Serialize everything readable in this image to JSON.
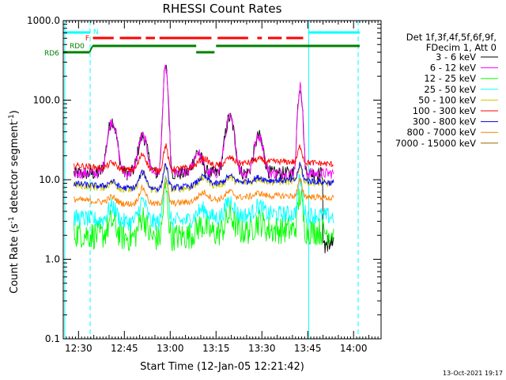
{
  "chart_data": {
    "type": "line",
    "title": "RHESSI Count Rates",
    "xlabel": "Start Time (12-Jan-05 12:21:42)",
    "ylabel_main": "Count Rate (s",
    "ylabel_sup": "-1",
    "ylabel_tail": " detector segment",
    "ylabel_end": ")",
    "y_scale": "log",
    "ylim": [
      0.1,
      1000
    ],
    "xlim_minutes": [
      -5,
      99
    ],
    "x_ticks": [
      {
        "label": "12:30",
        "min": 0
      },
      {
        "label": "12:45",
        "min": 15
      },
      {
        "label": "13:00",
        "min": 30
      },
      {
        "label": "13:15",
        "min": 45
      },
      {
        "label": "13:30",
        "min": 60
      },
      {
        "label": "13:45",
        "min": 75
      },
      {
        "label": "14:00",
        "min": 90
      }
    ],
    "y_ticks": [
      {
        "label": "0.1",
        "v": 0.1
      },
      {
        "label": "1.0",
        "v": 1
      },
      {
        "label": "10.0",
        "v": 10
      },
      {
        "label": "100.0",
        "v": 100
      },
      {
        "label": "1000.0",
        "v": 1000
      }
    ],
    "legend_header": [
      "Det 1f,3f,4f,5f,6f,9f,",
      "FDecim 1, Att 0"
    ],
    "legend_position": "right",
    "series": [
      {
        "name": "3 - 6 keV",
        "color": "#000000",
        "base": 12,
        "noise": 0.09,
        "flare": 1.0
      },
      {
        "name": "6 - 12 keV",
        "color": "#ff00ff",
        "base": 12,
        "noise": 0.07,
        "flare": 1.0
      },
      {
        "name": "12 - 25 keV",
        "color": "#00ff00",
        "base": 2.1,
        "noise": 0.18,
        "flare": 0.15
      },
      {
        "name": "25 - 50 keV",
        "color": "#00ffff",
        "base": 3.3,
        "noise": 0.11,
        "flare": 0.15
      },
      {
        "name": "50 - 100 keV",
        "color": "#cccc00",
        "base": 8.5,
        "noise": 0.05,
        "flare": 0.05
      },
      {
        "name": "100 - 300 keV",
        "color": "#ff0000",
        "base": 15,
        "noise": 0.04,
        "flare": 0.05
      },
      {
        "name": "300 - 800 keV",
        "color": "#0000ff",
        "base": 8.8,
        "noise": 0.04,
        "flare": 0.05
      },
      {
        "name": "800 - 7000 keV",
        "color": "#ff8000",
        "base": 5.6,
        "noise": 0.04,
        "flare": 0.05
      },
      {
        "name": "7000 - 15000 keV",
        "color": "#996600",
        "base": 1,
        "noise": 0.0,
        "flare": 0.0,
        "hidden": true
      }
    ],
    "flare_peaks": [
      {
        "min": 11,
        "value": 55
      },
      {
        "min": 21,
        "value": 35
      },
      {
        "min": 28.5,
        "value": 250
      },
      {
        "min": 39,
        "value": 22
      },
      {
        "min": 49.5,
        "value": 60
      },
      {
        "min": 59,
        "value": 35
      },
      {
        "min": 72.5,
        "value": 150
      }
    ],
    "data_range_minutes": [
      -1.5,
      83.5
    ],
    "lowest_gap_minutes": [
      80,
      83.5
    ],
    "night_markers": [
      {
        "min": -4.5
      },
      {
        "min": 75.3
      }
    ],
    "saa_markers": [
      {
        "min": 3.8
      },
      {
        "min": 91.5
      }
    ],
    "bars": {
      "cyan_label": "N",
      "red_label": "F",
      "green_label": "RD6",
      "green_label2": "RD0",
      "cyan_segments": [
        [
          -5,
          3.8
        ],
        [
          75.3,
          92
        ]
      ],
      "red_segments": [
        [
          4.7,
          11.5
        ],
        [
          13.5,
          20.5
        ],
        [
          22,
          25
        ],
        [
          26.5,
          43.5
        ],
        [
          45.5,
          55.5
        ],
        [
          58.5,
          60
        ],
        [
          62,
          66.5
        ],
        [
          68,
          73.5
        ]
      ],
      "green_segments_a": [
        [
          -5,
          3.6
        ],
        [
          4.6,
          38.5
        ],
        [
          45,
          92
        ]
      ],
      "green_segments_b": [
        [
          38.5,
          44.5
        ]
      ]
    },
    "timestamp": "13-Oct-2021 19:17"
  }
}
